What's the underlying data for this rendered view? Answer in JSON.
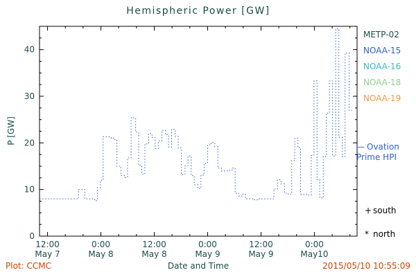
{
  "chart_data": {
    "type": "line",
    "title": "Hemispheric Power [GW]",
    "xlabel": "Date and Time",
    "ylabel": "P [GW]",
    "x_unit": "hours since 2015-05-07 00:00 UT",
    "xlim": [
      10.2,
      81.6
    ],
    "ylim": [
      0,
      45
    ],
    "y_ticks": [
      0,
      10,
      20,
      30,
      40
    ],
    "y_minor_step": 2.5,
    "x_minor_step": 4,
    "x_ticks": [
      {
        "hour": 12,
        "time": "12:00",
        "date": "May 7"
      },
      {
        "hour": 24,
        "time": "0:00",
        "date": "May 8"
      },
      {
        "hour": 36,
        "time": "12:00",
        "date": "May 8"
      },
      {
        "hour": 48,
        "time": "0:00",
        "date": "May 9"
      },
      {
        "hour": 60,
        "time": "12:00",
        "date": "May 9"
      },
      {
        "hour": 72,
        "time": "0:00",
        "date": "May10"
      }
    ],
    "grid": false,
    "legend_position": "right-outside",
    "text_color": "#1d4b4b",
    "frame_color": "#000000",
    "series": [
      {
        "name": "Ovation Prime HPI",
        "color": "#2f5fce",
        "style": "dotted-step",
        "points": [
          [
            10.2,
            8.0
          ],
          [
            19.0,
            10.0
          ],
          [
            20.4,
            8.0
          ],
          [
            22.6,
            7.6
          ],
          [
            23.2,
            10.4
          ],
          [
            23.9,
            12.0
          ],
          [
            24.5,
            21.3
          ],
          [
            26.3,
            21.0
          ],
          [
            27.1,
            20.7
          ],
          [
            27.6,
            15.0
          ],
          [
            28.5,
            13.0
          ],
          [
            29.3,
            12.6
          ],
          [
            30.0,
            16.8
          ],
          [
            30.8,
            25.4
          ],
          [
            31.8,
            22.3
          ],
          [
            32.5,
            15.2
          ],
          [
            33.2,
            13.3
          ],
          [
            33.9,
            19.8
          ],
          [
            34.7,
            22.0
          ],
          [
            35.5,
            21.2
          ],
          [
            36.2,
            18.8
          ],
          [
            36.9,
            20.4
          ],
          [
            37.7,
            22.7
          ],
          [
            38.5,
            21.8
          ],
          [
            39.2,
            19.1
          ],
          [
            39.9,
            22.9
          ],
          [
            40.7,
            21.4
          ],
          [
            41.4,
            18.9
          ],
          [
            42.1,
            13.2
          ],
          [
            42.9,
            15.1
          ],
          [
            43.6,
            17.2
          ],
          [
            44.3,
            13.0
          ],
          [
            45.0,
            11.0
          ],
          [
            45.8,
            10.2
          ],
          [
            46.5,
            13.1
          ],
          [
            47.2,
            15.6
          ],
          [
            48.0,
            19.6
          ],
          [
            48.8,
            20.1
          ],
          [
            49.6,
            19.2
          ],
          [
            50.3,
            14.6
          ],
          [
            51.1,
            14.0
          ],
          [
            52.7,
            14.1
          ],
          [
            53.5,
            14.6
          ],
          [
            54.2,
            9.2
          ],
          [
            55.0,
            8.6
          ],
          [
            55.7,
            9.0
          ],
          [
            56.5,
            8.0
          ],
          [
            58.2,
            7.8
          ],
          [
            59.2,
            8.0
          ],
          [
            62.9,
            10.1
          ],
          [
            63.7,
            12.1
          ],
          [
            64.5,
            11.2
          ],
          [
            65.3,
            9.2
          ],
          [
            66.1,
            9.0
          ],
          [
            66.9,
            16.2
          ],
          [
            67.6,
            21.0
          ],
          [
            68.3,
            19.0
          ],
          [
            68.9,
            9.0
          ],
          [
            70.4,
            8.8
          ],
          [
            71.3,
            17.3
          ],
          [
            71.9,
            33.3
          ],
          [
            72.6,
            12.1
          ],
          [
            73.2,
            8.2
          ],
          [
            74.0,
            17.1
          ],
          [
            74.7,
            26.4
          ],
          [
            75.4,
            33.3
          ],
          [
            76.1,
            17.2
          ],
          [
            76.8,
            44.5
          ],
          [
            77.5,
            21.2
          ],
          [
            78.3,
            17.0
          ],
          [
            78.9,
            39.3
          ],
          [
            79.8,
            27.0
          ],
          [
            80.9,
            27.0
          ]
        ]
      }
    ]
  },
  "legend": {
    "satellites": [
      {
        "label": "METP-02",
        "color": "#1d4b4b"
      },
      {
        "label": "NOAA-15",
        "color": "#2f5fce"
      },
      {
        "label": "NOAA-16",
        "color": "#3bb8c9"
      },
      {
        "label": "NOAA-18",
        "color": "#90d190"
      },
      {
        "label": "NOAA-19",
        "color": "#ef9a48"
      }
    ],
    "ovation": {
      "marker": "—",
      "line1": "Ovation",
      "line2": "Prime HPI",
      "color": "#2f5fce"
    },
    "hemisphere_markers": [
      {
        "symbol": "+",
        "label": "south"
      },
      {
        "symbol": "*",
        "label": "north"
      }
    ]
  },
  "footer": {
    "credit": "Plot: CCMC",
    "timestamp": "2015/05/10 10:55:09",
    "accent_color": "#cc4400"
  }
}
